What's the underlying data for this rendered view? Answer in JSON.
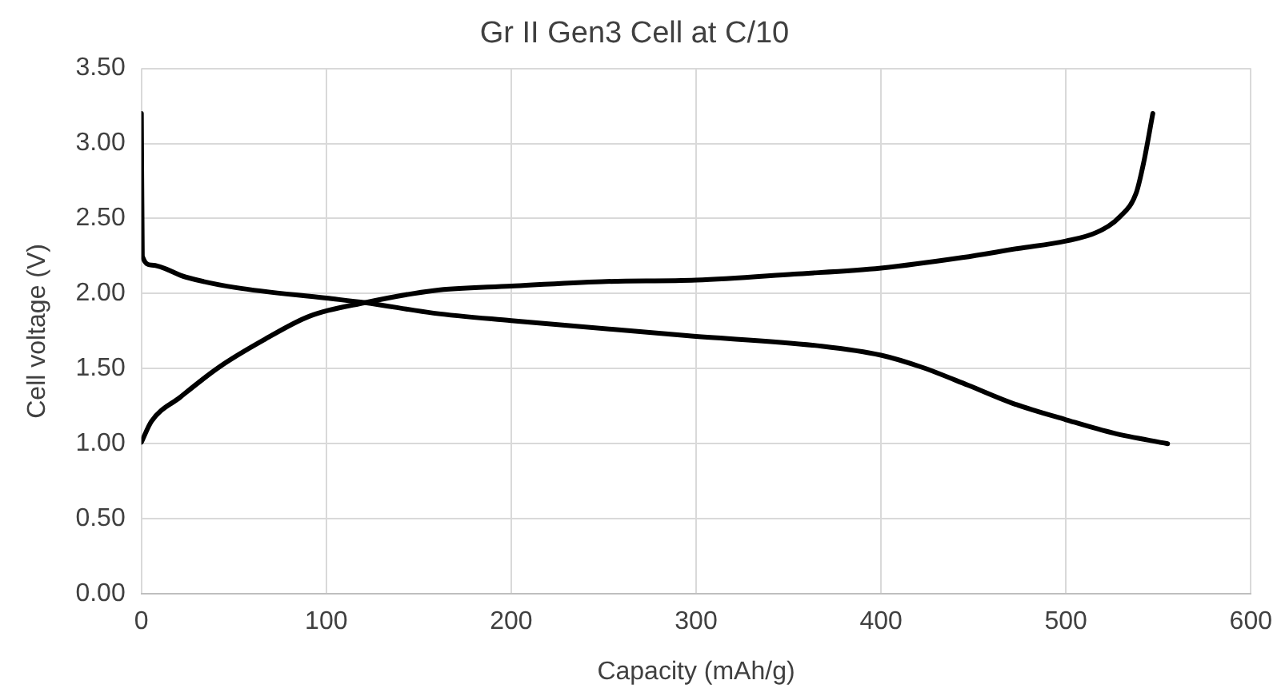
{
  "chart_data": {
    "type": "line",
    "title": "Gr II Gen3 Cell at C/10",
    "xlabel": "Capacity (mAh/g)",
    "ylabel": "Cell voltage (V)",
    "xlim": [
      0,
      600
    ],
    "xticks": [
      0,
      100,
      200,
      300,
      400,
      500,
      600
    ],
    "ylim": [
      0,
      3.5
    ],
    "yticks": [
      {
        "value": 0,
        "label": "0.00"
      },
      {
        "value": 0.5,
        "label": "0.50"
      },
      {
        "value": 1,
        "label": "1.00"
      },
      {
        "value": 1.5,
        "label": "1.50"
      },
      {
        "value": 2,
        "label": "2.00"
      },
      {
        "value": 2.5,
        "label": "2.50"
      },
      {
        "value": 3,
        "label": "3.00"
      },
      {
        "value": 3.5,
        "label": "3.50"
      }
    ],
    "grid": true,
    "legend": false,
    "marker": "none",
    "line_style": "solid",
    "series": [
      {
        "color": "#000000",
        "x": [
          0,
          0.5,
          5.5,
          24,
          51,
          100,
          121,
          158,
          200,
          295,
          368,
          400,
          422,
          447,
          471,
          500,
          526,
          555
        ],
        "values": [
          3.2,
          2.25,
          2.19,
          2.11,
          2.04,
          1.97,
          1.94,
          1.87,
          1.82,
          1.72,
          1.65,
          1.59,
          1.51,
          1.39,
          1.27,
          1.16,
          1.07,
          1.0
        ]
      },
      {
        "color": "#000000",
        "x": [
          0,
          5.5,
          21,
          42,
          66,
          91,
          121,
          158,
          200,
          249,
          300,
          353,
          400,
          444,
          474,
          500,
          517,
          529,
          538,
          542,
          547
        ],
        "values": [
          1.01,
          1.15,
          1.31,
          1.51,
          1.69,
          1.85,
          1.94,
          2.02,
          2.05,
          2.08,
          2.09,
          2.13,
          2.17,
          2.24,
          2.3,
          2.35,
          2.41,
          2.51,
          2.67,
          2.87,
          3.2
        ]
      }
    ]
  }
}
